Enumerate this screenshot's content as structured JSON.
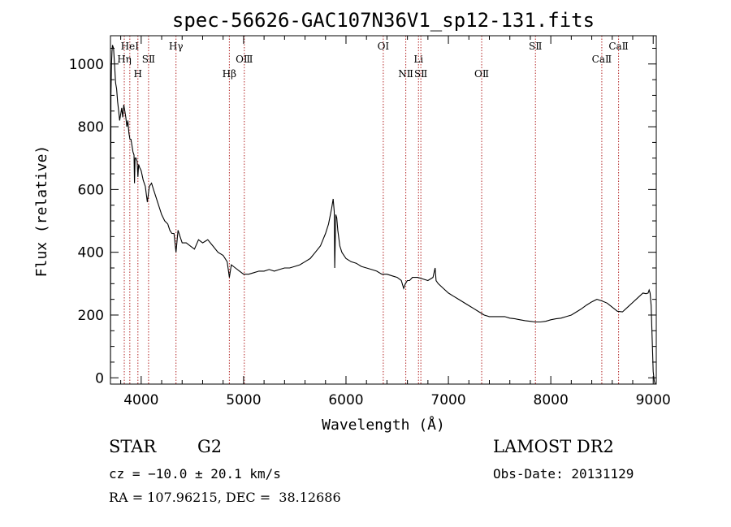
{
  "chart_data": {
    "type": "line",
    "title": "spec-56626-GAC107N36V1_sp12-131.fits",
    "xlabel": "Wavelength (Å)",
    "ylabel": "Flux (relative)",
    "xlim": [
      3700,
      9030
    ],
    "ylim": [
      -20,
      1090
    ],
    "xticks": [
      4000,
      5000,
      6000,
      7000,
      8000,
      9000
    ],
    "yticks": [
      0,
      200,
      400,
      600,
      800,
      1000
    ],
    "grid": false,
    "series": [
      {
        "x": [
          3700,
          3705,
          3710,
          3715,
          3720,
          3730,
          3740,
          3750,
          3760,
          3770,
          3780,
          3790,
          3800,
          3810,
          3820,
          3830,
          3840,
          3850,
          3860,
          3870,
          3880,
          3890,
          3900,
          3910,
          3920,
          3930,
          3935,
          3940,
          3950,
          3960,
          3968,
          3975,
          3985,
          4000,
          4020,
          4040,
          4060,
          4080,
          4101,
          4120,
          4140,
          4160,
          4180,
          4200,
          4230,
          4260,
          4280,
          4300,
          4320,
          4340,
          4360,
          4380,
          4400,
          4440,
          4480,
          4520,
          4560,
          4600,
          4650,
          4700,
          4750,
          4800,
          4840,
          4861,
          4880,
          4920,
          4960,
          5000,
          5050,
          5100,
          5150,
          5200,
          5250,
          5300,
          5350,
          5400,
          5450,
          5500,
          5550,
          5600,
          5650,
          5700,
          5750,
          5800,
          5830,
          5860,
          5875,
          5885,
          5890,
          5895,
          5900,
          5910,
          5920,
          5940,
          5960,
          6000,
          6050,
          6100,
          6150,
          6200,
          6250,
          6300,
          6350,
          6400,
          6450,
          6500,
          6540,
          6563,
          6580,
          6600,
          6620,
          6650,
          6700,
          6750,
          6800,
          6850,
          6870,
          6880,
          6900,
          6950,
          7000,
          7050,
          7100,
          7150,
          7200,
          7250,
          7300,
          7350,
          7400,
          7450,
          7500,
          7550,
          7600,
          7650,
          7700,
          7750,
          7800,
          7850,
          7900,
          7950,
          8000,
          8050,
          8100,
          8150,
          8200,
          8250,
          8300,
          8350,
          8400,
          8450,
          8500,
          8550,
          8600,
          8650,
          8700,
          8750,
          8800,
          8850,
          8900,
          8930,
          8950,
          8960,
          8970,
          8980,
          8990,
          9000,
          9010,
          9020
        ],
        "y": [
          0,
          900,
          1000,
          1040,
          1060,
          1050,
          1000,
          940,
          920,
          880,
          850,
          820,
          840,
          860,
          830,
          870,
          850,
          830,
          800,
          820,
          780,
          760,
          760,
          740,
          720,
          710,
          620,
          700,
          700,
          690,
          640,
          680,
          670,
          660,
          630,
          610,
          560,
          610,
          620,
          600,
          580,
          560,
          540,
          520,
          500,
          490,
          470,
          460,
          460,
          400,
          470,
          450,
          430,
          430,
          420,
          410,
          440,
          430,
          440,
          420,
          400,
          390,
          370,
          320,
          360,
          350,
          340,
          330,
          330,
          335,
          340,
          340,
          345,
          340,
          345,
          350,
          350,
          355,
          360,
          370,
          380,
          400,
          420,
          460,
          490,
          540,
          570,
          530,
          350,
          430,
          520,
          510,
          470,
          420,
          400,
          380,
          370,
          365,
          355,
          350,
          345,
          340,
          330,
          330,
          325,
          320,
          310,
          285,
          300,
          310,
          310,
          320,
          320,
          315,
          310,
          320,
          350,
          310,
          300,
          285,
          270,
          260,
          250,
          240,
          230,
          220,
          210,
          200,
          195,
          195,
          195,
          195,
          190,
          188,
          185,
          182,
          180,
          178,
          178,
          180,
          185,
          188,
          190,
          195,
          200,
          210,
          220,
          232,
          242,
          250,
          245,
          238,
          225,
          212,
          210,
          225,
          240,
          255,
          270,
          268,
          270,
          280,
          270,
          230,
          120,
          20,
          -10,
          -20
        ]
      }
    ],
    "lines": [
      {
        "label": "HeⅠ",
        "wavelength": 3889,
        "row": 1
      },
      {
        "label": "Hη",
        "wavelength": 3835,
        "row": 2
      },
      {
        "label": "SⅡ",
        "wavelength": 4072,
        "row": 2
      },
      {
        "label": "H",
        "wavelength": 3968,
        "row": 3
      },
      {
        "label": "Hγ",
        "wavelength": 4340,
        "row": 1
      },
      {
        "label": "OⅢ",
        "wavelength": 5007,
        "row": 2
      },
      {
        "label": "Hβ",
        "wavelength": 4861,
        "row": 3
      },
      {
        "label": "OⅠ",
        "wavelength": 6364,
        "row": 1
      },
      {
        "label": "Li",
        "wavelength": 6708,
        "row": 2
      },
      {
        "label": "NⅡ",
        "wavelength": 6584,
        "row": 3
      },
      {
        "label": "SⅡ",
        "wavelength": 6731,
        "row": 3
      },
      {
        "label": "OⅡ",
        "wavelength": 7325,
        "row": 3
      },
      {
        "label": "SⅡ",
        "wavelength": 7850,
        "row": 1
      },
      {
        "label": "CaⅡ",
        "wavelength": 8662,
        "row": 1
      },
      {
        "label": "CaⅡ",
        "wavelength": 8498,
        "row": 2
      }
    ]
  },
  "info": {
    "class": "STAR",
    "subclass": "G2",
    "cz": "cz = −10.0 ± 20.1 km/s",
    "radec": "RA = 107.96215, DEC =  38.12686",
    "survey": "LAMOST DR2",
    "obsdate": "Obs-Date: 20131129"
  },
  "colors": {
    "axis": "#000000",
    "spectrum": "#000000",
    "line_marker": "#b22222"
  }
}
